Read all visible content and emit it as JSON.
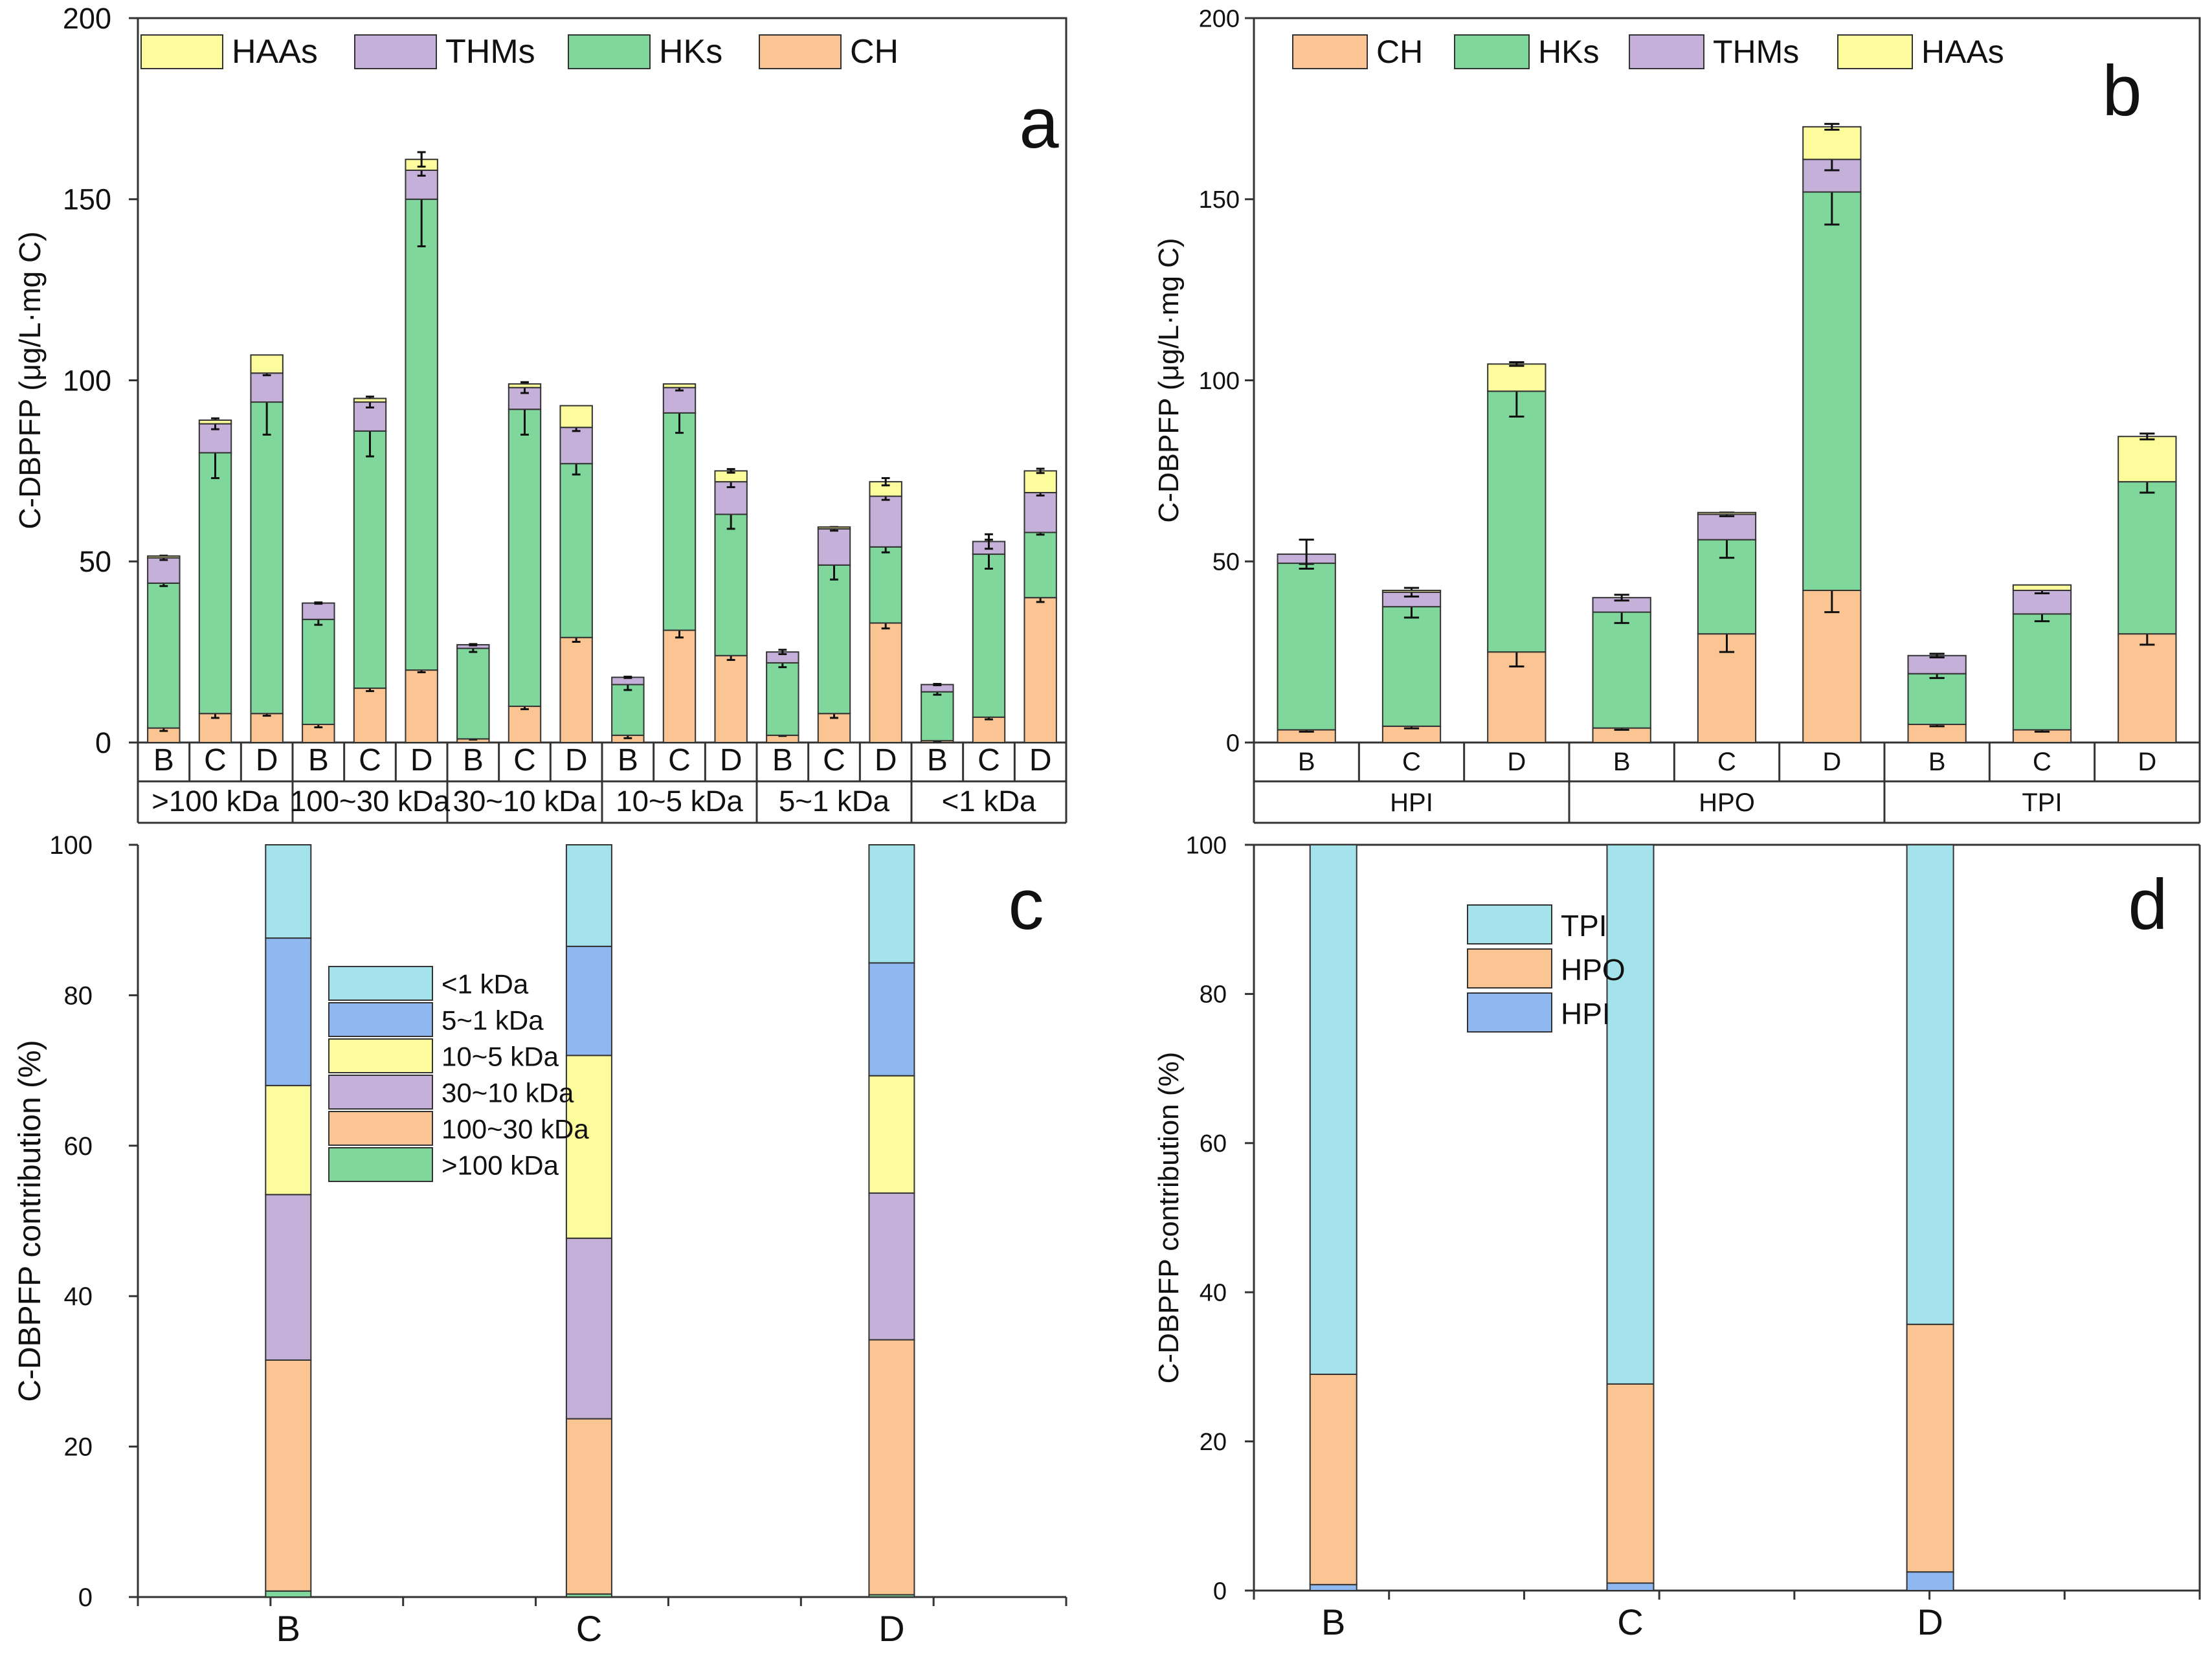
{
  "colors": {
    "CH": "#FBC493",
    "HKs": "#7FD79C",
    "THMs": "#C5B0DA",
    "HAAs": "#FDFC9C",
    "lt1": "#A4E3EB",
    "k5_1": "#8FB8F0",
    "k10_5": "#FDFC9C",
    "k30_10": "#C5B0DA",
    "k100_30": "#FBC493",
    "gt100": "#7FD79C",
    "TPI": "#A4E3EB",
    "HPO": "#FBC493",
    "HPI": "#8FB8F0",
    "edge": "#333333"
  },
  "chart_data": [
    {
      "id": "a",
      "type": "bar",
      "panel_label": "a",
      "ylabel": "C-DBPFP (μg/L·mg C)",
      "ylim": [
        0,
        200
      ],
      "yticks": [
        0,
        50,
        100,
        150,
        200
      ],
      "stack_order": [
        "CH",
        "HKs",
        "THMs",
        "HAAs"
      ],
      "legend": [
        "HAAs",
        "THMs",
        "HKs",
        "CH"
      ],
      "legend_color_keys": [
        "HAAs",
        "THMs",
        "HKs",
        "CH"
      ],
      "groups": [
        ">100 kDa",
        "100~30 kDa",
        "30~10 kDa",
        "10~5 kDa",
        "5~1 kDa",
        "<1 kDa"
      ],
      "subcategories": [
        "B",
        "C",
        "D"
      ],
      "bars": [
        {
          "group": ">100 kDa",
          "sub": "B",
          "CH": 4,
          "HKs": 40,
          "THMs": 7,
          "HAAs": 0.5,
          "err": [
            0.8,
            0.8,
            0.6,
            0
          ]
        },
        {
          "group": ">100 kDa",
          "sub": "C",
          "CH": 8,
          "HKs": 72,
          "THMs": 8,
          "HAAs": 1,
          "err": [
            1.2,
            7,
            1.5,
            0
          ]
        },
        {
          "group": ">100 kDa",
          "sub": "D",
          "CH": 8,
          "HKs": 86,
          "THMs": 8,
          "HAAs": 5,
          "err": [
            0.6,
            9,
            0.6,
            0
          ]
        },
        {
          "group": "100~30 kDa",
          "sub": "B",
          "CH": 5,
          "HKs": 29,
          "THMs": 4.5,
          "HAAs": 0,
          "err": [
            0.8,
            1.5,
            0,
            0
          ]
        },
        {
          "group": "100~30 kDa",
          "sub": "C",
          "CH": 15,
          "HKs": 71,
          "THMs": 8,
          "HAAs": 1,
          "err": [
            0.8,
            7,
            1.5,
            0
          ]
        },
        {
          "group": "100~30 kDa",
          "sub": "D",
          "CH": 20,
          "HKs": 130,
          "THMs": 8,
          "HAAs": 3,
          "err": [
            0.6,
            13,
            1.5,
            2
          ]
        },
        {
          "group": "30~10 kDa",
          "sub": "B",
          "CH": 1,
          "HKs": 25,
          "THMs": 1,
          "HAAs": 0,
          "err": [
            0,
            1,
            0,
            0
          ]
        },
        {
          "group": "30~10 kDa",
          "sub": "C",
          "CH": 10,
          "HKs": 82,
          "THMs": 6,
          "HAAs": 1,
          "err": [
            0.8,
            7,
            1.5,
            0
          ]
        },
        {
          "group": "30~10 kDa",
          "sub": "D",
          "CH": 29,
          "HKs": 48,
          "THMs": 10,
          "HAAs": 6,
          "err": [
            1.2,
            3,
            1,
            0
          ]
        },
        {
          "group": "10~5 kDa",
          "sub": "B",
          "CH": 2,
          "HKs": 14,
          "THMs": 2,
          "HAAs": 0,
          "err": [
            0.8,
            1.5,
            0,
            0
          ]
        },
        {
          "group": "10~5 kDa",
          "sub": "C",
          "CH": 31,
          "HKs": 60,
          "THMs": 7,
          "HAAs": 1,
          "err": [
            2,
            5.5,
            0.8,
            0
          ]
        },
        {
          "group": "10~5 kDa",
          "sub": "D",
          "CH": 24,
          "HKs": 39,
          "THMs": 9,
          "HAAs": 3,
          "err": [
            1.2,
            4,
            1.5,
            0.5
          ]
        },
        {
          "group": "5~1 kDa",
          "sub": "B",
          "CH": 2,
          "HKs": 20,
          "THMs": 3,
          "HAAs": 0,
          "err": [
            0,
            1.2,
            0.6,
            0
          ]
        },
        {
          "group": "5~1 kDa",
          "sub": "C",
          "CH": 8,
          "HKs": 41,
          "THMs": 10,
          "HAAs": 0.5,
          "err": [
            1.2,
            4,
            0.5,
            0
          ]
        },
        {
          "group": "5~1 kDa",
          "sub": "D",
          "CH": 33,
          "HKs": 21,
          "THMs": 14,
          "HAAs": 4,
          "err": [
            1.5,
            1.5,
            1,
            1
          ]
        },
        {
          "group": "<1 kDa",
          "sub": "B",
          "CH": 0.5,
          "HKs": 13.5,
          "THMs": 2,
          "HAAs": 0,
          "err": [
            0,
            0.8,
            0,
            0
          ]
        },
        {
          "group": "<1 kDa",
          "sub": "C",
          "CH": 7,
          "HKs": 45,
          "THMs": 3.5,
          "HAAs": 0,
          "err": [
            0.6,
            4,
            2,
            0
          ]
        },
        {
          "group": "<1 kDa",
          "sub": "D",
          "CH": 40,
          "HKs": 18,
          "THMs": 11,
          "HAAs": 6,
          "err": [
            1.2,
            0.6,
            0.8,
            0.6
          ]
        }
      ]
    },
    {
      "id": "b",
      "type": "bar",
      "panel_label": "b",
      "ylabel": "C-DBPFP (μg/L·mg C)",
      "ylim": [
        0,
        200
      ],
      "yticks": [
        0,
        50,
        100,
        150,
        200
      ],
      "stack_order": [
        "CH",
        "HKs",
        "THMs",
        "HAAs"
      ],
      "legend": [
        "CH",
        "HKs",
        "THMs",
        "HAAs"
      ],
      "legend_color_keys": [
        "CH",
        "HKs",
        "THMs",
        "HAAs"
      ],
      "groups": [
        "HPI",
        "HPO",
        "TPI"
      ],
      "subcategories": [
        "B",
        "C",
        "D"
      ],
      "bars": [
        {
          "group": "HPI",
          "sub": "B",
          "CH": 3.5,
          "HKs": 46,
          "THMs": 2.5,
          "HAAs": 0,
          "err": [
            0.5,
            0,
            4,
            0
          ]
        },
        {
          "group": "HPI",
          "sub": "C",
          "CH": 4.5,
          "HKs": 33,
          "THMs": 4,
          "HAAs": 0.5,
          "err": [
            0.6,
            3,
            1.2,
            0
          ]
        },
        {
          "group": "HPI",
          "sub": "D",
          "CH": 25,
          "HKs": 72,
          "THMs": 0,
          "HAAs": 7.5,
          "err": [
            4,
            7,
            0,
            0.5
          ]
        },
        {
          "group": "HPO",
          "sub": "B",
          "CH": 4,
          "HKs": 32,
          "THMs": 4,
          "HAAs": 0,
          "err": [
            0.5,
            3,
            0.8,
            0
          ]
        },
        {
          "group": "HPO",
          "sub": "C",
          "CH": 30,
          "HKs": 26,
          "THMs": 7,
          "HAAs": 0.5,
          "err": [
            5,
            5,
            0.5,
            0
          ]
        },
        {
          "group": "HPO",
          "sub": "D",
          "CH": 42,
          "HKs": 110,
          "THMs": 9,
          "HAAs": 9,
          "err": [
            6,
            9,
            3,
            0.8
          ]
        },
        {
          "group": "TPI",
          "sub": "B",
          "CH": 5,
          "HKs": 14,
          "THMs": 5,
          "HAAs": 0,
          "err": [
            0.5,
            1.2,
            0.5,
            0
          ]
        },
        {
          "group": "TPI",
          "sub": "C",
          "CH": 3.5,
          "HKs": 32,
          "THMs": 6.5,
          "HAAs": 1.5,
          "err": [
            0.5,
            2,
            0.8,
            0
          ]
        },
        {
          "group": "TPI",
          "sub": "D",
          "CH": 30,
          "HKs": 42,
          "THMs": 0,
          "HAAs": 12.5,
          "err": [
            3,
            3,
            0,
            0.8
          ]
        }
      ]
    },
    {
      "id": "c",
      "type": "bar",
      "panel_label": "c",
      "ylabel": "C-DBPFP contribution (%)",
      "ylim": [
        0,
        100
      ],
      "yticks": [
        0,
        20,
        40,
        60,
        80,
        100
      ],
      "categories": [
        "B",
        "C",
        "D"
      ],
      "stack_order": [
        ">100 kDa",
        "100~30 kDa",
        "30~10 kDa",
        "10~5 kDa",
        "5~1 kDa",
        "<1 kDa"
      ],
      "stack_color_keys": [
        "gt100",
        "k100_30",
        "k30_10",
        "k10_5",
        "k5_1",
        "lt1"
      ],
      "legend": [
        "<1 kDa",
        "5~1 kDa",
        "10~5 kDa",
        "30~10 kDa",
        "100~30 kDa",
        ">100 kDa"
      ],
      "legend_color_keys": [
        "lt1",
        "k5_1",
        "k10_5",
        "k30_10",
        "k100_30",
        "gt100"
      ],
      "series": [
        {
          "name": ">100 kDa",
          "values": [
            0.8,
            0.4,
            0.3
          ]
        },
        {
          "name": "100~30 kDa",
          "values": [
            30.7,
            23.3,
            33.9
          ]
        },
        {
          "name": "30~10 kDa",
          "values": [
            22.0,
            24.0,
            19.5
          ]
        },
        {
          "name": "10~5 kDa",
          "values": [
            14.5,
            24.3,
            15.6
          ]
        },
        {
          "name": "5~1 kDa",
          "values": [
            19.6,
            14.5,
            15.0
          ]
        },
        {
          "name": "<1 kDa",
          "values": [
            12.4,
            13.5,
            15.7
          ]
        }
      ]
    },
    {
      "id": "d",
      "type": "bar",
      "panel_label": "d",
      "ylabel": "C-DBPFP contribution (%)",
      "ylim": [
        0,
        100
      ],
      "yticks": [
        0,
        20,
        40,
        60,
        80,
        100
      ],
      "categories": [
        "B",
        "C",
        "D"
      ],
      "stack_order": [
        "HPI",
        "HPO",
        "TPI"
      ],
      "stack_color_keys": [
        "HPI",
        "HPO",
        "TPI"
      ],
      "legend": [
        "TPI",
        "HPO",
        "HPI"
      ],
      "legend_color_keys": [
        "TPI",
        "HPO",
        "HPI"
      ],
      "series": [
        {
          "name": "HPI",
          "values": [
            0.8,
            1.0,
            2.5
          ]
        },
        {
          "name": "HPO",
          "values": [
            28.2,
            26.7,
            33.2
          ]
        },
        {
          "name": "TPI",
          "values": [
            71.0,
            72.3,
            64.3
          ]
        }
      ]
    }
  ]
}
